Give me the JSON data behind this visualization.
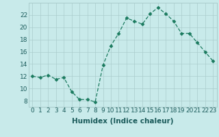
{
  "xlabel": "Humidex (Indice chaleur)",
  "ylabel": "",
  "x": [
    0,
    1,
    2,
    3,
    4,
    5,
    6,
    7,
    8,
    9,
    10,
    11,
    12,
    13,
    14,
    15,
    16,
    17,
    18,
    19,
    20,
    21,
    22,
    23
  ],
  "y": [
    12.0,
    11.8,
    12.2,
    11.5,
    11.8,
    9.5,
    8.2,
    8.2,
    7.8,
    13.8,
    17.0,
    19.0,
    21.5,
    21.0,
    20.5,
    22.2,
    23.2,
    22.2,
    21.0,
    19.0,
    19.0,
    17.5,
    16.0,
    14.5
  ],
  "line_color": "#1a7a5e",
  "marker": "D",
  "marker_size": 2.5,
  "bg_color": "#c8eaea",
  "grid_color": "#aacccc",
  "ylim": [
    7,
    24
  ],
  "xlim": [
    -0.5,
    23.5
  ],
  "yticks": [
    8,
    10,
    12,
    14,
    16,
    18,
    20,
    22
  ],
  "xticks": [
    0,
    1,
    2,
    3,
    4,
    5,
    6,
    7,
    8,
    9,
    10,
    11,
    12,
    13,
    14,
    15,
    16,
    17,
    18,
    19,
    20,
    21,
    22,
    23
  ],
  "xlabel_fontsize": 7.5,
  "tick_fontsize": 6.5,
  "spine_color": "#aacccc",
  "tick_color": "#1a5a5a"
}
